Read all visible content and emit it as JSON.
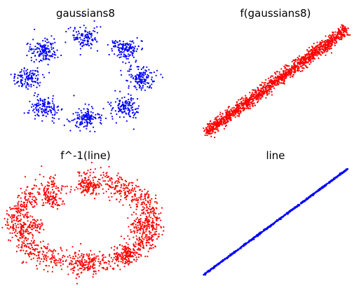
{
  "chart_data": [
    {
      "type": "scatter",
      "title": "gaussians8",
      "color": "#0000ff",
      "axes_visible": false,
      "description_of_shape": "8 gaussian clusters arranged on a circle",
      "series": [
        {
          "centers": [
            [
              0,
              2.0
            ],
            [
              1.41,
              1.41
            ],
            [
              2.0,
              0
            ],
            [
              1.41,
              -1.41
            ],
            [
              0,
              -2.0
            ],
            [
              -1.41,
              -1.41
            ],
            [
              -2.0,
              0
            ],
            [
              -1.41,
              1.41
            ]
          ],
          "std": 0.2,
          "n": 2000
        }
      ]
    },
    {
      "type": "scatter",
      "title": "f(gaussians8)",
      "color": "#ff0000",
      "axes_visible": false,
      "series": [
        {
          "line": "diagonal",
          "n": 2000
        }
      ]
    },
    {
      "type": "scatter",
      "title": "f^-1(line)",
      "color": "#ff0000",
      "axes_visible": false,
      "series": [
        {
          "ring_with_lumps": true,
          "n": 2000
        }
      ]
    },
    {
      "type": "scatter",
      "title": "line",
      "color": "#0000ff",
      "axes_visible": false,
      "series": [
        {
          "line": "diagonal",
          "n": 2000
        }
      ]
    }
  ]
}
